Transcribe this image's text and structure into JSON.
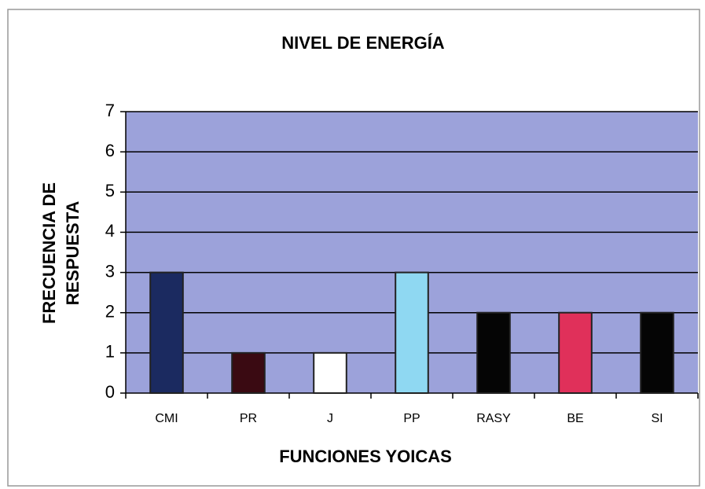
{
  "chart_data": {
    "type": "bar",
    "title": "NIVEL DE ENERGÍA",
    "ylabel": [
      "FRECUENCIA DE",
      "RESPUESTA"
    ],
    "xlabel": "FUNCIONES YOICAS",
    "categories": [
      "CMI",
      "PR",
      "J",
      "PP",
      "RASY",
      "BE",
      "SI"
    ],
    "values": [
      3,
      1,
      1,
      3,
      2,
      2,
      2
    ],
    "colors": [
      "#1b2a60",
      "#3a0a12",
      "#ffffff",
      "#8fd8f2",
      "#050505",
      "#e0305a",
      "#050505"
    ],
    "plot_background": "#9ca2da",
    "ylim": [
      0,
      7
    ],
    "yticks": [
      0,
      1,
      2,
      3,
      4,
      5,
      6,
      7
    ],
    "grid": true
  }
}
